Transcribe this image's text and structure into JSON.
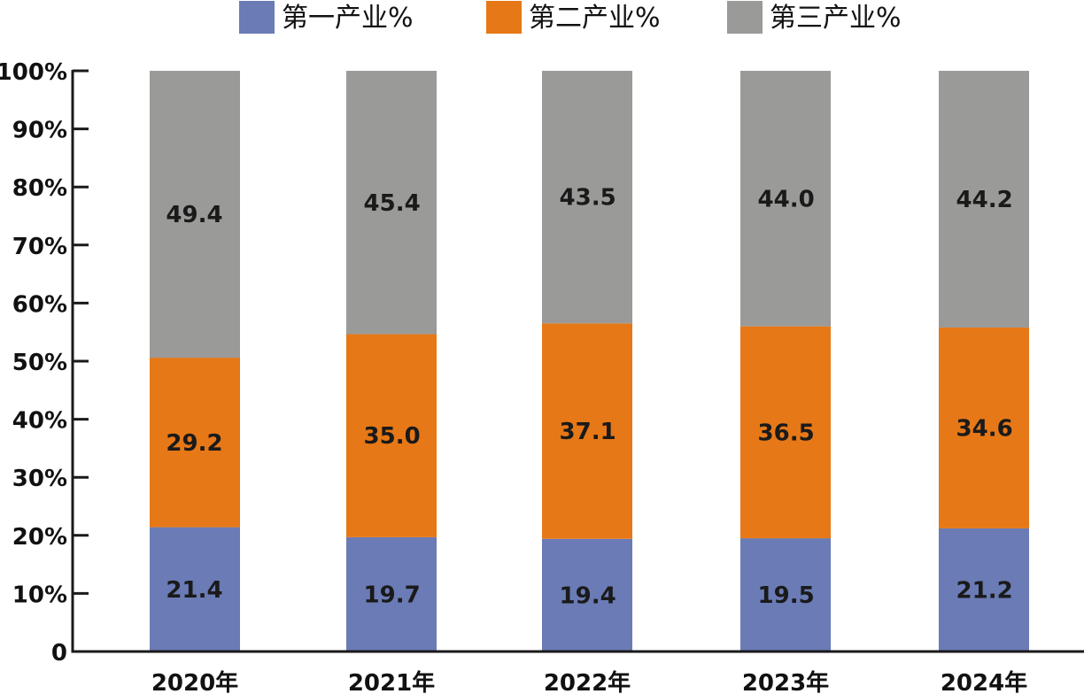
{
  "chart_data": {
    "type": "bar",
    "stacked": true,
    "categories": [
      "2020年",
      "2021年",
      "2022年",
      "2023年",
      "2024年"
    ],
    "series": [
      {
        "name": "第一产业%",
        "color": "#6a7bb5",
        "values": [
          21.4,
          19.7,
          19.4,
          19.5,
          21.2
        ]
      },
      {
        "name": "第二产业%",
        "color": "#e67817",
        "values": [
          29.2,
          35.0,
          37.1,
          36.5,
          34.6
        ]
      },
      {
        "name": "第三产业%",
        "color": "#9a9a98",
        "values": [
          49.4,
          45.4,
          43.5,
          44.0,
          44.2
        ]
      }
    ],
    "data_labels": [
      [
        "21.4",
        "19.7",
        "19.4",
        "19.5",
        "21.2"
      ],
      [
        "29.2",
        "35.0",
        "37.1",
        "36.5",
        "34.6"
      ],
      [
        "49.4",
        "45.4",
        "43.5",
        "44.0",
        "44.2"
      ]
    ],
    "y_ticks": [
      {
        "value": 0,
        "label": "0"
      },
      {
        "value": 10,
        "label": "10%"
      },
      {
        "value": 20,
        "label": "20%"
      },
      {
        "value": 30,
        "label": "30%"
      },
      {
        "value": 40,
        "label": "40%"
      },
      {
        "value": 50,
        "label": "50%"
      },
      {
        "value": 60,
        "label": "60%"
      },
      {
        "value": 70,
        "label": "70%"
      },
      {
        "value": 80,
        "label": "80%"
      },
      {
        "value": 90,
        "label": "90%"
      },
      {
        "value": 100,
        "label": "100%"
      }
    ],
    "ylim": [
      0,
      100
    ],
    "title": "",
    "xlabel": "",
    "ylabel": "",
    "grid": false,
    "legend": "top-center"
  }
}
